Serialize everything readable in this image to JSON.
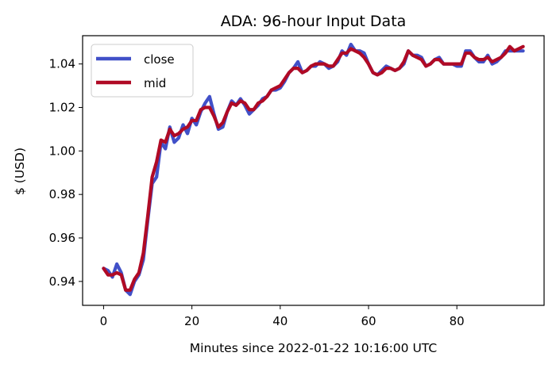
{
  "chart_data": {
    "type": "line",
    "title": "ADA: 96-hour Input Data",
    "xlabel": "Minutes since 2022-01-22 10:16:00 UTC",
    "ylabel": "$ (USD)",
    "xlim": [
      -4.75,
      99.75
    ],
    "ylim": [
      0.929,
      1.053
    ],
    "xticks": [
      0,
      20,
      40,
      60,
      80
    ],
    "xtick_labels": [
      "0",
      "20",
      "40",
      "60",
      "80"
    ],
    "yticks": [
      0.94,
      0.96,
      0.98,
      1.0,
      1.02,
      1.04
    ],
    "ytick_labels": [
      "0.94",
      "0.96",
      "0.98",
      "1.00",
      "1.02",
      "1.04"
    ],
    "grid": false,
    "legend_position": "upper-left",
    "series": [
      {
        "name": "close",
        "color": "#4150c8",
        "values": [
          0.946,
          0.945,
          0.942,
          0.948,
          0.944,
          0.936,
          0.934,
          0.94,
          0.943,
          0.95,
          0.968,
          0.985,
          0.988,
          1.004,
          1.001,
          1.011,
          1.004,
          1.006,
          1.012,
          1.008,
          1.015,
          1.012,
          1.018,
          1.022,
          1.025,
          1.017,
          1.01,
          1.011,
          1.018,
          1.023,
          1.021,
          1.024,
          1.021,
          1.017,
          1.019,
          1.021,
          1.024,
          1.025,
          1.028,
          1.028,
          1.029,
          1.032,
          1.036,
          1.038,
          1.041,
          1.036,
          1.037,
          1.039,
          1.039,
          1.041,
          1.04,
          1.038,
          1.039,
          1.041,
          1.046,
          1.044,
          1.049,
          1.046,
          1.046,
          1.045,
          1.04,
          1.036,
          1.035,
          1.037,
          1.039,
          1.038,
          1.037,
          1.038,
          1.04,
          1.046,
          1.044,
          1.044,
          1.043,
          1.039,
          1.04,
          1.042,
          1.043,
          1.04,
          1.04,
          1.04,
          1.039,
          1.039,
          1.046,
          1.046,
          1.043,
          1.041,
          1.041,
          1.044,
          1.04,
          1.041,
          1.043,
          1.046,
          1.046,
          1.046,
          1.046,
          1.046
        ],
        "x_start": 0
      },
      {
        "name": "mid",
        "color": "#b00a25",
        "values": [
          0.946,
          0.943,
          0.943,
          0.944,
          0.943,
          0.936,
          0.936,
          0.941,
          0.944,
          0.953,
          0.97,
          0.988,
          0.995,
          1.005,
          1.004,
          1.01,
          1.007,
          1.008,
          1.01,
          1.011,
          1.014,
          1.014,
          1.019,
          1.02,
          1.02,
          1.016,
          1.011,
          1.013,
          1.018,
          1.022,
          1.021,
          1.023,
          1.022,
          1.019,
          1.019,
          1.022,
          1.023,
          1.025,
          1.028,
          1.029,
          1.03,
          1.033,
          1.036,
          1.038,
          1.038,
          1.036,
          1.037,
          1.039,
          1.04,
          1.04,
          1.04,
          1.039,
          1.039,
          1.042,
          1.045,
          1.045,
          1.047,
          1.046,
          1.045,
          1.043,
          1.04,
          1.036,
          1.035,
          1.036,
          1.038,
          1.038,
          1.037,
          1.038,
          1.041,
          1.046,
          1.044,
          1.043,
          1.042,
          1.039,
          1.04,
          1.042,
          1.042,
          1.04,
          1.04,
          1.04,
          1.04,
          1.04,
          1.045,
          1.045,
          1.043,
          1.042,
          1.042,
          1.043,
          1.041,
          1.042,
          1.043,
          1.045,
          1.048,
          1.046,
          1.047,
          1.048
        ],
        "x_start": 0
      }
    ]
  }
}
